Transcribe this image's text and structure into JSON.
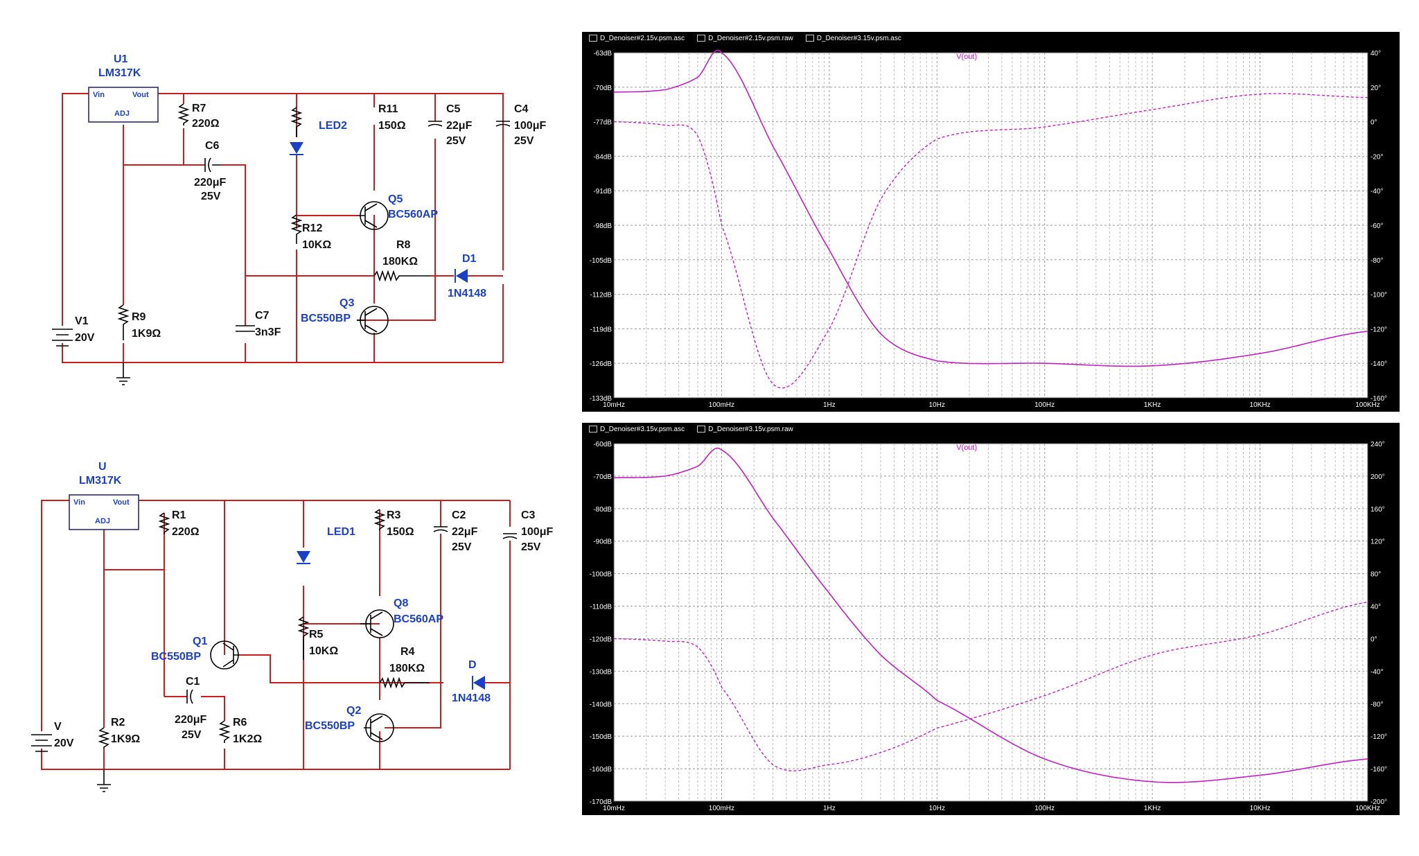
{
  "schematic_top": {
    "regulator": {
      "ref": "U1",
      "part": "LM317K",
      "vin": "Vin",
      "vout": "Vout",
      "adj": "ADJ"
    },
    "source": {
      "ref": "V1",
      "value": "20V"
    },
    "r7": {
      "ref": "R7",
      "value": "220Ω"
    },
    "r9": {
      "ref": "R9",
      "value": "1K9Ω"
    },
    "c6": {
      "ref": "C6",
      "value": "220μF",
      "voltage": "25V"
    },
    "c7": {
      "ref": "C7",
      "value": "3n3F"
    },
    "led": {
      "ref": "LED2"
    },
    "r12": {
      "ref": "R12",
      "value": "10KΩ"
    },
    "r11": {
      "ref": "R11",
      "value": "150Ω"
    },
    "q5": {
      "ref": "Q5",
      "part": "BC560AP"
    },
    "r8": {
      "ref": "R8",
      "value": "180KΩ"
    },
    "q3": {
      "ref": "Q3",
      "part": "BC550BP"
    },
    "c5": {
      "ref": "C5",
      "value": "22μF",
      "voltage": "25V"
    },
    "c4": {
      "ref": "C4",
      "value": "100μF",
      "voltage": "25V"
    },
    "d1": {
      "ref": "D1",
      "part": "1N4148"
    }
  },
  "schematic_bottom": {
    "regulator": {
      "ref": "U",
      "part": "LM317K",
      "vin": "Vin",
      "vout": "Vout",
      "adj": "ADJ"
    },
    "source": {
      "ref": "V",
      "value": "20V"
    },
    "r1": {
      "ref": "R1",
      "value": "220Ω"
    },
    "r2": {
      "ref": "R2",
      "value": "1K9Ω"
    },
    "q1": {
      "ref": "Q1",
      "part": "BC550BP"
    },
    "c1": {
      "ref": "C1",
      "value": "220μF",
      "voltage": "25V"
    },
    "r6": {
      "ref": "R6",
      "value": "1K2Ω"
    },
    "led": {
      "ref": "LED1"
    },
    "r5": {
      "ref": "R5",
      "value": "10KΩ"
    },
    "r3": {
      "ref": "R3",
      "value": "150Ω"
    },
    "q8": {
      "ref": "Q8",
      "part": "BC560AP"
    },
    "r4": {
      "ref": "R4",
      "value": "180KΩ"
    },
    "q2": {
      "ref": "Q2",
      "part": "BC550BP"
    },
    "c2": {
      "ref": "C2",
      "value": "22μF",
      "voltage": "25V"
    },
    "c3": {
      "ref": "C3",
      "value": "100μF",
      "voltage": "25V"
    },
    "d": {
      "ref": "D",
      "part": "1N4148"
    }
  },
  "plot_top": {
    "tabs": [
      "D_Denoiser#2.15v.psm.asc",
      "D_Denoiser#2.15v.psm.raw",
      "D_Denoiser#3.15v.psm.asc"
    ],
    "trace_label": "V(out)",
    "y_left_ticks": [
      "-63dB",
      "-70dB",
      "-77dB",
      "-84dB",
      "-91dB",
      "-98dB",
      "-105dB",
      "-112dB",
      "-119dB",
      "-126dB",
      "-133dB"
    ],
    "y_right_ticks": [
      "40°",
      "20°",
      "0°",
      "-20°",
      "-40°",
      "-60°",
      "-80°",
      "-100°",
      "-120°",
      "-140°",
      "-160°"
    ],
    "x_ticks": [
      "10mHz",
      "100mHz",
      "1Hz",
      "10Hz",
      "100Hz",
      "1KHz",
      "10KHz",
      "100KHz"
    ],
    "trace_color": "#c020c0"
  },
  "plot_bottom": {
    "tabs": [
      "D_Denoiser#3.15v.psm.asc",
      "D_Denoiser#3.15v.psm.raw"
    ],
    "trace_label": "V(out)",
    "y_left_ticks": [
      "-60dB",
      "-70dB",
      "-80dB",
      "-90dB",
      "-100dB",
      "-110dB",
      "-120dB",
      "-130dB",
      "-140dB",
      "-150dB",
      "-160dB",
      "-170dB"
    ],
    "y_right_ticks": [
      "240°",
      "200°",
      "160°",
      "120°",
      "80°",
      "40°",
      "0°",
      "-40°",
      "-80°",
      "-120°",
      "-160°",
      "-200°"
    ],
    "x_ticks": [
      "10mHz",
      "100mHz",
      "1Hz",
      "10Hz",
      "100Hz",
      "1KHz",
      "10KHz",
      "100KHz"
    ],
    "trace_color": "#c020c0"
  },
  "chart_data": [
    {
      "type": "line",
      "title": "V(out)",
      "x_scale": "log",
      "xlim": [
        0.01,
        100000
      ],
      "ylim": [
        -133,
        -63
      ],
      "y2lim": [
        -160,
        40
      ],
      "x": [
        0.01,
        0.03,
        0.06,
        0.1,
        0.3,
        1,
        3,
        10,
        100,
        1000,
        10000,
        100000
      ],
      "series": [
        {
          "name": "magnitude (dB)",
          "axis": "left",
          "values": [
            -71,
            -70.5,
            -68,
            -63,
            -82,
            -103,
            -120,
            -125.5,
            -126,
            -126.5,
            -124,
            -119.5
          ]
        },
        {
          "name": "phase (°)",
          "axis": "right",
          "values": [
            0,
            -2,
            -8,
            -60,
            -152,
            -120,
            -45,
            -10,
            -3,
            7,
            16,
            14
          ]
        }
      ]
    },
    {
      "type": "line",
      "title": "V(out)",
      "x_scale": "log",
      "xlim": [
        0.01,
        100000
      ],
      "ylim": [
        -170,
        -60
      ],
      "y2lim": [
        -200,
        240
      ],
      "x": [
        0.01,
        0.03,
        0.06,
        0.1,
        0.3,
        1,
        3,
        10,
        100,
        1000,
        10000,
        100000
      ],
      "series": [
        {
          "name": "magnitude (dB)",
          "axis": "left",
          "values": [
            -70.5,
            -70,
            -67,
            -62,
            -83,
            -106,
            -125,
            -139,
            -157,
            -164,
            -162,
            -157
          ]
        },
        {
          "name": "phase (°)",
          "axis": "right",
          "values": [
            0,
            -3,
            -10,
            -60,
            -155,
            -155,
            -140,
            -110,
            -70,
            -20,
            5,
            45
          ]
        }
      ]
    }
  ]
}
